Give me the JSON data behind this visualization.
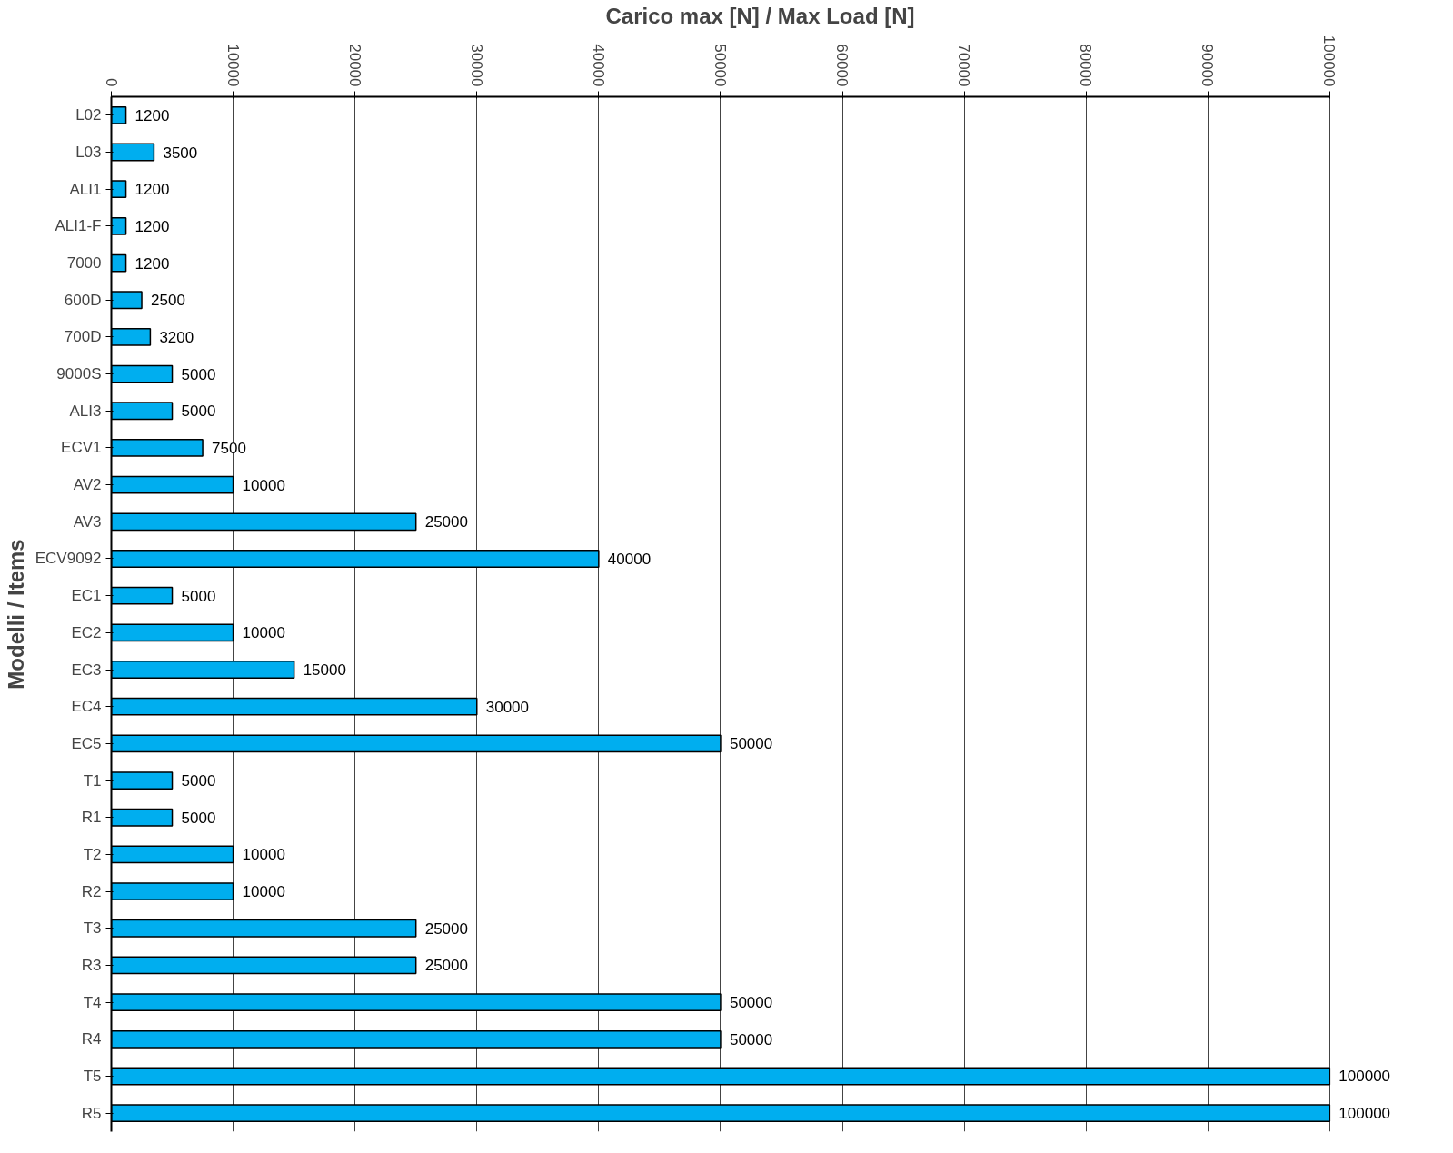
{
  "chart_data": {
    "type": "bar",
    "orientation": "horizontal",
    "xlabel": "Carico max [N] / Max Load [N]",
    "ylabel": "Modelli / Items",
    "categories": [
      "L02",
      "L03",
      "ALI1",
      "ALI1-F",
      "7000",
      "600D",
      "700D",
      "9000S",
      "ALI3",
      "ECV1",
      "AV2",
      "AV3",
      "ECV9092",
      "EC1",
      "EC2",
      "EC3",
      "EC4",
      "EC5",
      "T1",
      "R1",
      "T2",
      "R2",
      "T3",
      "R3",
      "T4",
      "R4",
      "T5",
      "R5"
    ],
    "values": [
      1200,
      3500,
      1200,
      1200,
      1200,
      2500,
      3200,
      5000,
      5000,
      7500,
      10000,
      25000,
      40000,
      5000,
      10000,
      15000,
      30000,
      50000,
      5000,
      5000,
      10000,
      10000,
      25000,
      25000,
      50000,
      50000,
      100000,
      100000
    ],
    "color": "#00aeef",
    "xlim": [
      0,
      100000
    ],
    "xticks": [
      0,
      10000,
      20000,
      30000,
      40000,
      50000,
      60000,
      70000,
      80000,
      90000,
      100000
    ],
    "grid": "x",
    "data_labels": true
  }
}
